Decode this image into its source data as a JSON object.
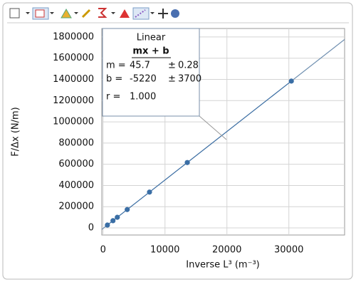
{
  "chart_data": {
    "type": "scatter",
    "xlabel": "Inverse L³ (m⁻³)",
    "ylabel": "F/Δx (N/m)",
    "x": [
      700,
      1600,
      2300,
      3900,
      7500,
      13600,
      30400
    ],
    "series": [
      {
        "color": "#3a6ea5",
        "values": [
          26800,
          67900,
          99900,
          173000,
          337500,
          616300,
          1384000
        ]
      }
    ],
    "xlim": [
      -200,
      39000
    ],
    "ylim": [
      -67000,
      1880000
    ],
    "xticks": [
      0,
      10000,
      20000,
      30000
    ],
    "yticks": [
      0,
      200000,
      400000,
      600000,
      800000,
      1000000,
      1200000,
      1400000,
      1600000,
      1800000
    ],
    "grid": true,
    "fit": {
      "title": "Linear",
      "equation": "mx + b",
      "m_label": "m =",
      "m": 45.7,
      "m_err": 0.28,
      "b_label": "b =",
      "b": -5220,
      "b_err": 3700,
      "pm": "±",
      "r_label": "r =",
      "r": "1.000"
    }
  }
}
